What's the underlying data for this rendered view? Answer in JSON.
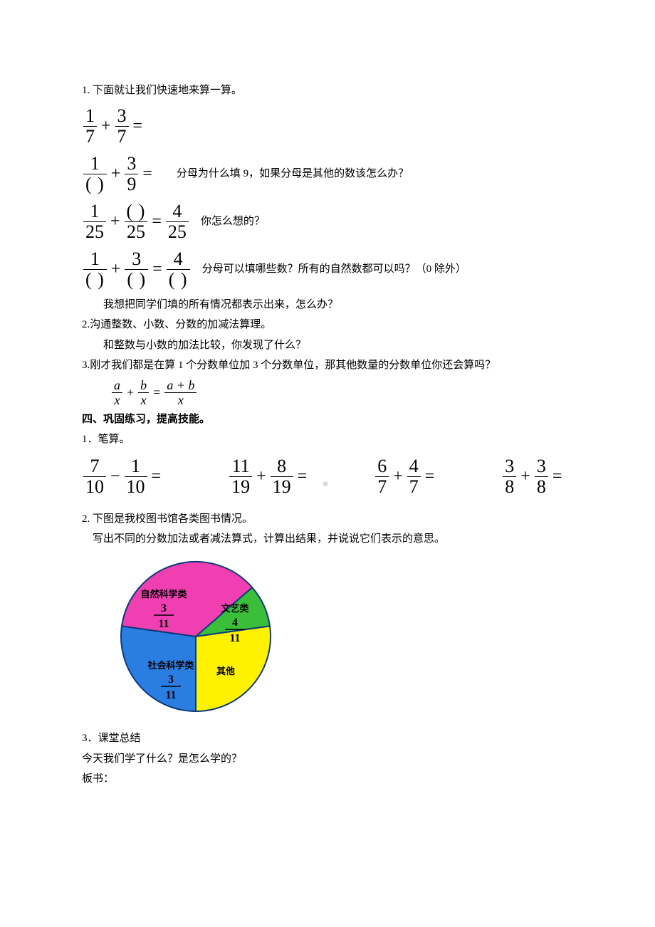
{
  "q1": {
    "title": "1. 下面就让我们快速地来算一算。",
    "rows": [
      {
        "n1": "1",
        "d1": "7",
        "n2": "3",
        "d2": "7",
        "rhs": null,
        "note": null,
        "op": "+",
        "blank_d1": false,
        "blank_n2": false,
        "blank_d2": false,
        "blank_rd": false
      },
      {
        "n1": "1",
        "d1": "( )",
        "n2": "3",
        "d2": "9",
        "rhs": null,
        "note": "分母为什么填 9，如果分母是其他的数该怎么办？",
        "op": "+",
        "blank_d1": true
      },
      {
        "n1": "1",
        "d1": "25",
        "n2": "( )",
        "d2": "25",
        "rhs_n": "4",
        "rhs_d": "25",
        "note": "你怎么想的？",
        "op": "+",
        "blank_n2": true
      },
      {
        "n1": "1",
        "d1": "( )",
        "n2": "3",
        "d2": "( )",
        "rhs_n": "4",
        "rhs_d": "( )",
        "note": "分母可以填哪些数？所有的自然数都可以吗？（0 除外）",
        "op": "+"
      }
    ],
    "after": "我想把同学们填的所有情况都表示出来，怎么办？"
  },
  "q2": {
    "title": "2.沟通整数、小数、分数的加减法算理。",
    "line": "和整数与小数的加法比较，你发现了什么？"
  },
  "q3": {
    "title": "3.刚才我们都是在算 1 个分数单位加 3 个分数单位，那其他数量的分数单位你还会算吗？",
    "formula": {
      "a": "a",
      "b": "b",
      "x": "x",
      "res": "a + b"
    }
  },
  "sec4": {
    "heading": "四、巩固练习，提高技能。",
    "p1": "1．笔算。",
    "calcs": [
      {
        "n1": "7",
        "d1": "10",
        "op": "−",
        "n2": "1",
        "d2": "10"
      },
      {
        "n1": "11",
        "d1": "19",
        "op": "+",
        "n2": "8",
        "d2": "19"
      },
      {
        "n1": "6",
        "d1": "7",
        "op": "+",
        "n2": "4",
        "d2": "7"
      },
      {
        "n1": "3",
        "d1": "8",
        "op": "+",
        "n2": "3",
        "d2": "8"
      }
    ],
    "p2": "2. 下图是我校图书馆各类图书情况。",
    "p2b": "写出不同的分数加法或者减法算式，计算出结果，并说说它们表示的意思。"
  },
  "pie": {
    "slices": [
      {
        "label": "自然科学类",
        "frac_n": "3",
        "frac_d": "11",
        "color": "#2a7de1",
        "start": 180,
        "end": 278
      },
      {
        "label": "文艺类",
        "frac_n": "4",
        "frac_d": "11",
        "color": "#ef3fb1",
        "start": 278,
        "end": 49
      },
      {
        "label": "其他",
        "frac_n": null,
        "frac_d": null,
        "color": "#3bbf3b",
        "start": 49,
        "end": 82
      },
      {
        "label": "社会科学类",
        "frac_n": "3",
        "frac_d": "11",
        "color": "#fff200",
        "start": 82,
        "end": 180
      }
    ],
    "stroke": "#0b3a7a",
    "label_font": "bold 13px SimHei, sans-serif",
    "frac_font": "bold 16px 'Times New Roman', serif"
  },
  "closing": {
    "p3": "3．课堂总结",
    "line1": "今天我们学了什么？是怎么学的？",
    "line2": "板书："
  },
  "watermark": "■"
}
